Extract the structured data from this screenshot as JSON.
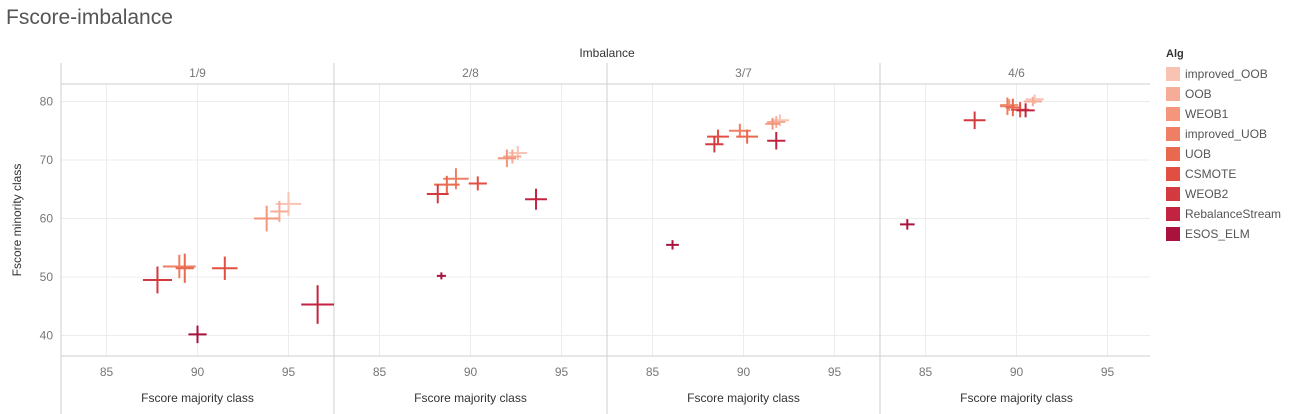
{
  "page": {
    "title": "Fscore-imbalance"
  },
  "chart_data": {
    "type": "scatter",
    "mark": "cross",
    "facet_title": "Imbalance",
    "facets": [
      "1/9",
      "2/8",
      "3/7",
      "4/6"
    ],
    "xlabel": "Fscore majority class",
    "ylabel": "Fscore minority class",
    "xlim": [
      82.5,
      97.5
    ],
    "ylim": [
      36.5,
      83
    ],
    "xticks": [
      85,
      90,
      95
    ],
    "yticks": [
      40,
      50,
      60,
      70,
      80
    ],
    "grid": true,
    "legend": {
      "title": "Alg",
      "position": "right"
    },
    "series": [
      {
        "name": "improved_OOB",
        "color": "#f9c3b4",
        "points": [
          {
            "facet": "1/9",
            "x": 95.0,
            "y": 62.5,
            "xe": 0.7,
            "ye": 2.0
          },
          {
            "facet": "2/8",
            "x": 92.6,
            "y": 71.2,
            "xe": 0.5,
            "ye": 1.2
          },
          {
            "facet": "3/7",
            "x": 92.0,
            "y": 76.8,
            "xe": 0.5,
            "ye": 1.0
          },
          {
            "facet": "4/6",
            "x": 91.0,
            "y": 80.4,
            "xe": 0.5,
            "ye": 0.8
          }
        ]
      },
      {
        "name": "OOB",
        "color": "#f7ac98",
        "points": [
          {
            "facet": "1/9",
            "x": 94.5,
            "y": 61.2,
            "xe": 0.5,
            "ye": 1.8
          },
          {
            "facet": "2/8",
            "x": 92.3,
            "y": 70.6,
            "xe": 0.5,
            "ye": 1.2
          },
          {
            "facet": "3/7",
            "x": 91.8,
            "y": 76.5,
            "xe": 0.5,
            "ye": 1.0
          },
          {
            "facet": "4/6",
            "x": 90.9,
            "y": 80.0,
            "xe": 0.5,
            "ye": 0.8
          }
        ]
      },
      {
        "name": "WEOB1",
        "color": "#f4967c",
        "points": [
          {
            "facet": "1/9",
            "x": 93.8,
            "y": 60.0,
            "xe": 0.7,
            "ye": 2.2
          },
          {
            "facet": "2/8",
            "x": 92.0,
            "y": 70.3,
            "xe": 0.5,
            "ye": 1.5
          },
          {
            "facet": "3/7",
            "x": 91.6,
            "y": 76.2,
            "xe": 0.4,
            "ye": 1.0
          },
          {
            "facet": "4/6",
            "x": 89.6,
            "y": 79.4,
            "xe": 0.5,
            "ye": 1.0
          }
        ]
      },
      {
        "name": "improved_UOB",
        "color": "#ef7f64",
        "points": [
          {
            "facet": "1/9",
            "x": 89.0,
            "y": 51.8,
            "xe": 0.9,
            "ye": 2.0
          },
          {
            "facet": "2/8",
            "x": 89.2,
            "y": 66.8,
            "xe": 0.7,
            "ye": 1.8
          },
          {
            "facet": "3/7",
            "x": 89.8,
            "y": 75.0,
            "xe": 0.6,
            "ye": 1.2
          },
          {
            "facet": "4/6",
            "x": 89.5,
            "y": 79.2,
            "xe": 0.4,
            "ye": 1.5
          }
        ]
      },
      {
        "name": "UOB",
        "color": "#e9694f",
        "points": [
          {
            "facet": "1/9",
            "x": 89.3,
            "y": 51.5,
            "xe": 0.5,
            "ye": 2.5
          },
          {
            "facet": "2/8",
            "x": 88.7,
            "y": 65.8,
            "xe": 0.7,
            "ye": 1.5
          },
          {
            "facet": "3/7",
            "x": 90.2,
            "y": 74.0,
            "xe": 0.6,
            "ye": 1.2
          },
          {
            "facet": "4/6",
            "x": 89.8,
            "y": 79.0,
            "xe": 0.4,
            "ye": 1.5
          }
        ]
      },
      {
        "name": "CSMOTE",
        "color": "#e04f42",
        "points": [
          {
            "facet": "1/9",
            "x": 91.5,
            "y": 51.5,
            "xe": 0.7,
            "ye": 2.0
          },
          {
            "facet": "2/8",
            "x": 90.4,
            "y": 66.0,
            "xe": 0.5,
            "ye": 1.2
          },
          {
            "facet": "3/7",
            "x": 88.6,
            "y": 74.0,
            "xe": 0.6,
            "ye": 1.2
          },
          {
            "facet": "4/6",
            "x": 90.2,
            "y": 78.6,
            "xe": 0.5,
            "ye": 1.3
          }
        ]
      },
      {
        "name": "WEOB2",
        "color": "#d33a3f",
        "points": [
          {
            "facet": "1/9",
            "x": 87.8,
            "y": 49.5,
            "xe": 0.8,
            "ye": 2.3
          },
          {
            "facet": "2/8",
            "x": 88.2,
            "y": 64.2,
            "xe": 0.6,
            "ye": 1.6
          },
          {
            "facet": "3/7",
            "x": 88.4,
            "y": 72.7,
            "xe": 0.5,
            "ye": 1.4
          },
          {
            "facet": "4/6",
            "x": 87.7,
            "y": 76.8,
            "xe": 0.6,
            "ye": 1.5
          }
        ]
      },
      {
        "name": "RebalanceStream",
        "color": "#c22340",
        "points": [
          {
            "facet": "1/9",
            "x": 96.6,
            "y": 45.3,
            "xe": 0.9,
            "ye": 3.3
          },
          {
            "facet": "2/8",
            "x": 93.6,
            "y": 63.3,
            "xe": 0.6,
            "ye": 1.8
          },
          {
            "facet": "3/7",
            "x": 91.8,
            "y": 73.3,
            "xe": 0.5,
            "ye": 1.5
          },
          {
            "facet": "4/6",
            "x": 90.5,
            "y": 78.5,
            "xe": 0.5,
            "ye": 1.2
          }
        ]
      },
      {
        "name": "ESOS_ELM",
        "color": "#a8123d",
        "points": [
          {
            "facet": "1/9",
            "x": 90.0,
            "y": 40.2,
            "xe": 0.5,
            "ye": 1.5
          },
          {
            "facet": "2/8",
            "x": 88.4,
            "y": 50.2,
            "xe": 0.25,
            "ye": 0.6
          },
          {
            "facet": "3/7",
            "x": 86.1,
            "y": 55.5,
            "xe": 0.35,
            "ye": 0.8
          },
          {
            "facet": "4/6",
            "x": 84.0,
            "y": 59.0,
            "xe": 0.4,
            "ye": 0.9
          }
        ]
      }
    ]
  }
}
